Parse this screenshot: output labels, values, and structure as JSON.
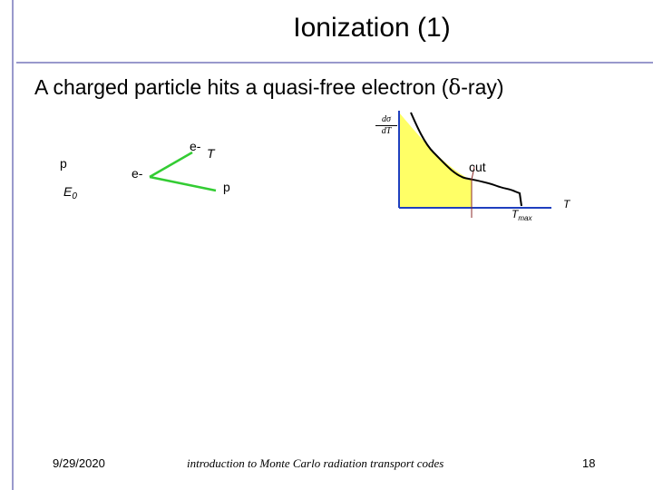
{
  "title": "Ionization (1)",
  "subtitle_prefix": "A charged particle hits a quasi-free electron (",
  "subtitle_symbol": "δ",
  "subtitle_suffix": "-ray)",
  "diagram": {
    "incoming_particle": "p",
    "incoming_energy": "E",
    "incoming_energy_sub": "0",
    "target_electron": "e-",
    "outgoing_electron": "e-",
    "outgoing_electron_energy": "T",
    "outgoing_particle": "p",
    "colors": {
      "arrow": "#33cc33",
      "fill": "#ffff66",
      "axis": "#1f3fbf",
      "cut_line": "#8b2b2b"
    }
  },
  "plot": {
    "y_numerator": "dσ",
    "y_denominator": "dT",
    "cut_label": "cut",
    "tmax_label": "T",
    "tmax_sub": "max",
    "x_axis_label": "T"
  },
  "footer": {
    "date": "9/29/2020",
    "center": "introduction to Monte Carlo radiation transport codes",
    "page": "18"
  }
}
